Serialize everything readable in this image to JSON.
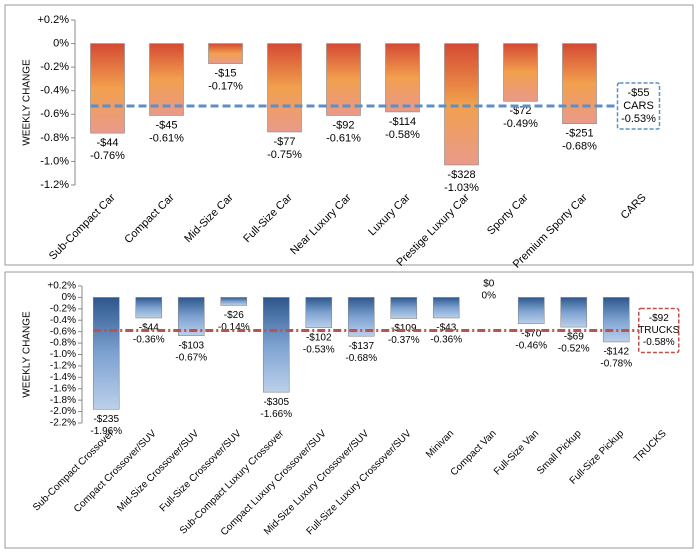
{
  "chart_data": [
    {
      "type": "bar",
      "y_label": "WEEKLY CHANGE",
      "categories": [
        "Sub-Compact Car",
        "Compact Car",
        "Mid-Size Car",
        "Full-Size Car",
        "Near Luxury Car",
        "Luxury Car",
        "Prestige Luxury Car",
        "Sporty Car",
        "Premium Sporty Car"
      ],
      "values": [
        -0.76,
        -0.61,
        -0.17,
        -0.75,
        -0.61,
        -0.58,
        -1.03,
        -0.49,
        -0.68
      ],
      "value_labels": [
        "-0.76%",
        "-0.61%",
        "-0.17%",
        "-0.75%",
        "-0.61%",
        "-0.58%",
        "-1.03%",
        "-0.49%",
        "-0.68%"
      ],
      "change_labels": [
        "-$44",
        "-$45",
        "-$15",
        "-$77",
        "-$92",
        "-$114",
        "-$328",
        "-$72",
        "-$251"
      ],
      "colors": [
        "#d44a33",
        "#f2a04e",
        "#e99a8a"
      ],
      "average": {
        "name": "CARS",
        "value": -0.53,
        "value_label": "-0.53%",
        "change_label": "-$55",
        "color": "#5b8fc8"
      },
      "ylim": [
        -1.2,
        0.2
      ],
      "yticks": [
        {
          "value": 0.2,
          "label": "+0.2%"
        },
        {
          "value": 0,
          "label": "0%"
        },
        {
          "value": -0.2,
          "label": "-0.2%"
        },
        {
          "value": -0.4,
          "label": "-0.4%"
        },
        {
          "value": -0.6,
          "label": "-0.6%"
        },
        {
          "value": -0.8,
          "label": "-0.8%"
        },
        {
          "value": -1.0,
          "label": "-1.0%"
        },
        {
          "value": -1.2,
          "label": "-1.2%"
        }
      ]
    },
    {
      "type": "bar",
      "y_label": "WEEKLY CHANGE",
      "categories": [
        "Sub-Compact Crossover",
        "Compact Crossover/SUV",
        "Mid-Size Crossover/SUV",
        "Full-Size Crossover/SUV",
        "Sub-Compact Luxury Crossover",
        "Compact Luxury Crossover/SUV",
        "Mid-Size Luxury Crossover/SUV",
        "Full-Size Luxury Crossover/SUV",
        "Minivan",
        "Compact Van",
        "Full-Size Van",
        "Small Pickup",
        "Full-Size Pickup"
      ],
      "values": [
        -1.96,
        -0.36,
        -0.67,
        -0.14,
        -1.66,
        -0.53,
        -0.68,
        -0.37,
        -0.36,
        0,
        -0.46,
        -0.52,
        -0.78
      ],
      "value_labels": [
        "-1.96%",
        "-0.36%",
        "-0.67%",
        "-0.14%",
        "-1.66%",
        "-0.53%",
        "-0.68%",
        "-0.37%",
        "-0.36%",
        "0%",
        "-0.46%",
        "-0.52%",
        "-0.78%"
      ],
      "change_labels": [
        "-$235",
        "-$44",
        "-$103",
        "-$26",
        "-$305",
        "-$102",
        "-$137",
        "-$109",
        "-$43",
        "$0",
        "-$70",
        "-$69",
        "-$142"
      ],
      "colors": [
        "#2d578c",
        "#7da2d1",
        "#bcd0ea"
      ],
      "average": {
        "name": "TRUCKS",
        "value": -0.58,
        "value_label": "-0.58%",
        "change_label": "-$92",
        "color": "#c0504d"
      },
      "ylim": [
        -2.2,
        0.2
      ],
      "yticks": [
        {
          "value": 0.2,
          "label": "+0.2%"
        },
        {
          "value": 0,
          "label": "0%"
        },
        {
          "value": -0.2,
          "label": "-0.2%"
        },
        {
          "value": -0.4,
          "label": "-0.4%"
        },
        {
          "value": -0.6,
          "label": "-0.6%"
        },
        {
          "value": -0.8,
          "label": "-0.8%"
        },
        {
          "value": -1.0,
          "label": "-1.0%"
        },
        {
          "value": -1.2,
          "label": "-1.2%"
        },
        {
          "value": -1.4,
          "label": "-1.4%"
        },
        {
          "value": -1.6,
          "label": "-1.6%"
        },
        {
          "value": -1.8,
          "label": "-1.8%"
        },
        {
          "value": -2.0,
          "label": "-2.0%"
        },
        {
          "value": -2.2,
          "label": "-2.2%"
        }
      ]
    }
  ]
}
